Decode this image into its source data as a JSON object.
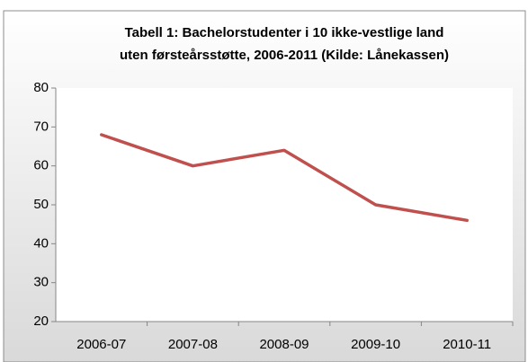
{
  "chart_data": {
    "type": "line",
    "title": [
      "Tabell 1: Bachelorstudenter i 10 ikke-vestlige land",
      "uten førsteårsstøtte, 2006-2011 (Kilde: Lånekassen)"
    ],
    "categories": [
      "2006-07",
      "2007-08",
      "2008-09",
      "2009-10",
      "2010-11"
    ],
    "series": [
      {
        "name": null,
        "color": "#c0504d",
        "values": [
          68,
          60,
          64,
          50,
          46
        ]
      }
    ],
    "ylim": [
      20,
      80
    ],
    "yticks": [
      20,
      30,
      40,
      50,
      60,
      70,
      80
    ],
    "grid": false
  }
}
